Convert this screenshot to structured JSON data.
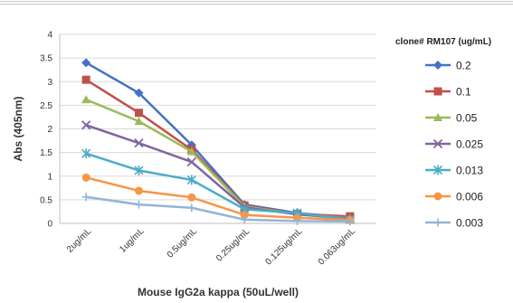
{
  "chart_data": {
    "type": "line",
    "title": "",
    "xlabel": "Mouse IgG2a kappa (50uL/well)",
    "ylabel": "Abs (405nm)",
    "ylim": [
      0,
      4
    ],
    "yticks": [
      "0",
      "0.5",
      "1",
      "1.5",
      "2",
      "2.5",
      "3",
      "3.5",
      "4"
    ],
    "grid": "horizontal",
    "legend_title": "clone# RM107 (ug/mL)",
    "legend_position": "right",
    "categories": [
      "2ug/mL",
      "1ug/mL",
      "0.5ug/mL",
      "0.25ug/mL",
      "0.125ug/mL",
      "0.063ug/mL"
    ],
    "series": [
      {
        "name": "0.2",
        "color": "#4472c4",
        "marker": "diamond",
        "values": [
          3.4,
          2.76,
          1.66,
          0.4,
          0.22,
          0.12
        ]
      },
      {
        "name": "0.1",
        "color": "#c0504d",
        "marker": "square",
        "values": [
          3.04,
          2.34,
          1.56,
          0.38,
          0.2,
          0.15
        ]
      },
      {
        "name": "0.05",
        "color": "#9bbb59",
        "marker": "triangle",
        "values": [
          2.62,
          2.16,
          1.52,
          0.36,
          0.2,
          0.11
        ]
      },
      {
        "name": "0.025",
        "color": "#8064a2",
        "marker": "x",
        "values": [
          2.08,
          1.7,
          1.3,
          0.34,
          0.19,
          0.1
        ]
      },
      {
        "name": "0.013",
        "color": "#4bacc6",
        "marker": "star",
        "values": [
          1.48,
          1.12,
          0.92,
          0.3,
          0.22,
          0.08
        ]
      },
      {
        "name": "0.006",
        "color": "#f79646",
        "marker": "circle",
        "values": [
          0.97,
          0.69,
          0.55,
          0.18,
          0.12,
          0.07
        ]
      },
      {
        "name": "0.003",
        "color": "#95b3d7",
        "marker": "plus",
        "values": [
          0.56,
          0.4,
          0.33,
          0.08,
          0.05,
          0.04
        ]
      }
    ]
  }
}
